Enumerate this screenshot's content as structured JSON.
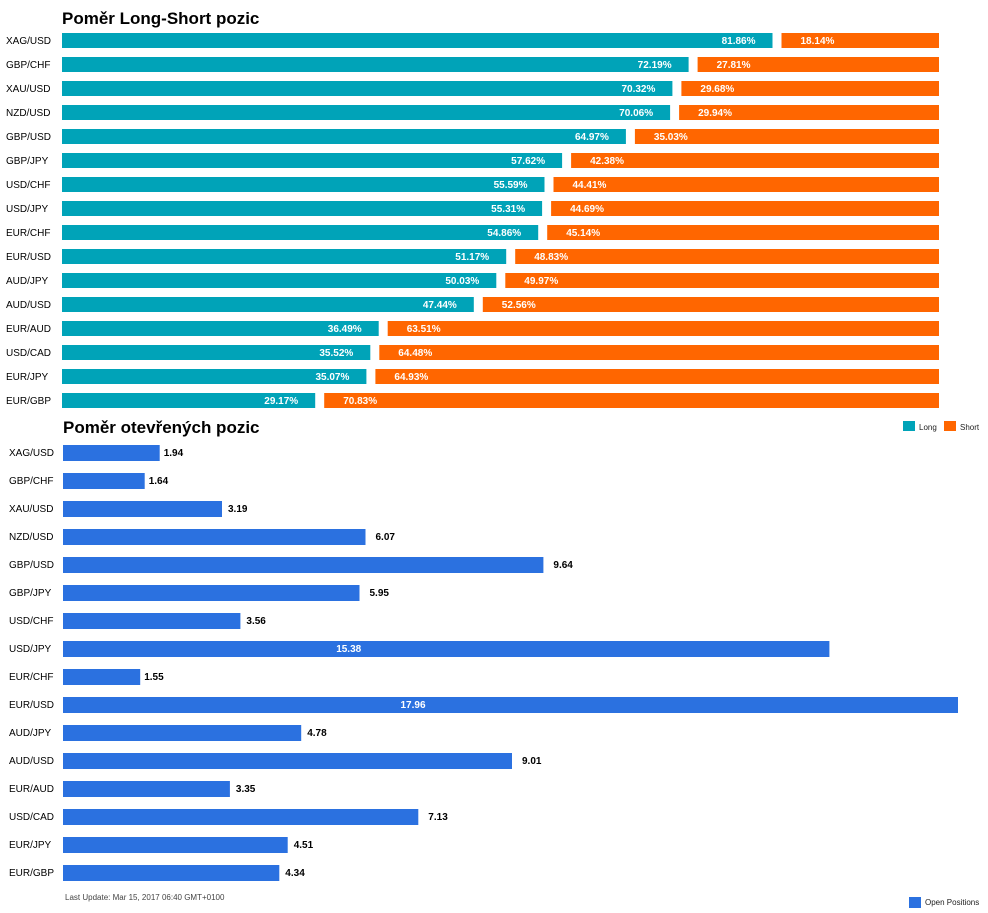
{
  "colors": {
    "long": "#00a3b8",
    "short": "#ff6600",
    "open": "#2b71e0"
  },
  "chart_data": [
    {
      "type": "bar",
      "orientation": "horizontal",
      "stacked": true,
      "title": "Poměr Long-Short pozic",
      "categories": [
        "XAG/USD",
        "GBP/CHF",
        "XAU/USD",
        "NZD/USD",
        "GBP/USD",
        "GBP/JPY",
        "USD/CHF",
        "USD/JPY",
        "EUR/CHF",
        "EUR/USD",
        "AUD/JPY",
        "AUD/USD",
        "EUR/AUD",
        "USD/CAD",
        "EUR/JPY",
        "EUR/GBP"
      ],
      "series": [
        {
          "name": "Long",
          "values": [
            81.86,
            72.19,
            70.32,
            70.06,
            64.97,
            57.62,
            55.59,
            55.31,
            54.86,
            51.17,
            50.03,
            47.44,
            36.49,
            35.52,
            35.07,
            29.17
          ]
        },
        {
          "name": "Short",
          "values": [
            18.14,
            27.81,
            29.68,
            29.94,
            35.03,
            42.38,
            44.41,
            44.69,
            45.14,
            48.83,
            49.97,
            52.56,
            63.51,
            64.48,
            64.93,
            70.83
          ]
        }
      ],
      "value_suffix": "%",
      "legend": "top-right",
      "xlim": [
        0,
        100
      ]
    },
    {
      "type": "bar",
      "orientation": "horizontal",
      "title": "Poměr otevřených pozic",
      "categories": [
        "XAG/USD",
        "GBP/CHF",
        "XAU/USD",
        "NZD/USD",
        "GBP/USD",
        "GBP/JPY",
        "USD/CHF",
        "USD/JPY",
        "EUR/CHF",
        "EUR/USD",
        "AUD/JPY",
        "AUD/USD",
        "EUR/AUD",
        "USD/CAD",
        "EUR/JPY",
        "EUR/GBP"
      ],
      "series": [
        {
          "name": "Open Positions",
          "values": [
            1.94,
            1.64,
            3.19,
            6.07,
            9.64,
            5.95,
            3.56,
            15.38,
            1.55,
            17.96,
            4.78,
            9.01,
            3.35,
            7.13,
            4.51,
            4.34
          ]
        }
      ],
      "legend": "bottom-right",
      "xlim": [
        0,
        17.96
      ]
    }
  ],
  "footer": {
    "last_update": "Last Update: Mar 15, 2017 06:40 GMT+0100"
  }
}
